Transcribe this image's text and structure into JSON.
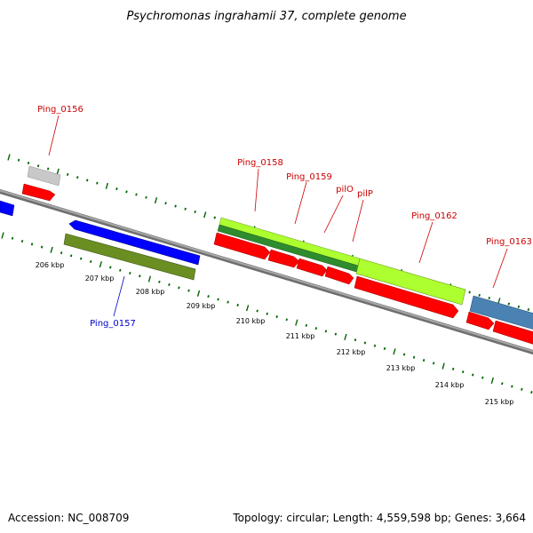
{
  "title": "Psychromonas ingrahamii 37, complete genome",
  "footer": {
    "accession": "Accession: NC_008709",
    "summary": "Topology: circular; Length: 4,559,598 bp; Genes: 3,664"
  },
  "ticks": [
    "206 kbp",
    "207 kbp",
    "208 kbp",
    "209 kbp",
    "210 kbp",
    "211 kbp",
    "212 kbp",
    "213 kbp",
    "214 kbp",
    "215 kbp"
  ],
  "labels": {
    "ping_0156": "Ping_0156",
    "ping_0157": "Ping_0157",
    "ping_0158": "Ping_0158",
    "ping_0159": "Ping_0159",
    "pilO": "pilO",
    "pilP": "pilP",
    "ping_0162": "Ping_0162",
    "ping_0163": "Ping_0163"
  },
  "colors": {
    "backbone": "#8c8c8c",
    "cds": "#ff0000",
    "forward_blue": "#0000ff",
    "reverse_green": "#6b8e23",
    "lime": "#adff2f",
    "dark_green": "#2e8b2e",
    "steel": "#4a82b4",
    "gray_gene": "#c0c0c0",
    "tick_green": "#006400",
    "label_red": "#cc0000",
    "label_blue": "#0000cc"
  }
}
